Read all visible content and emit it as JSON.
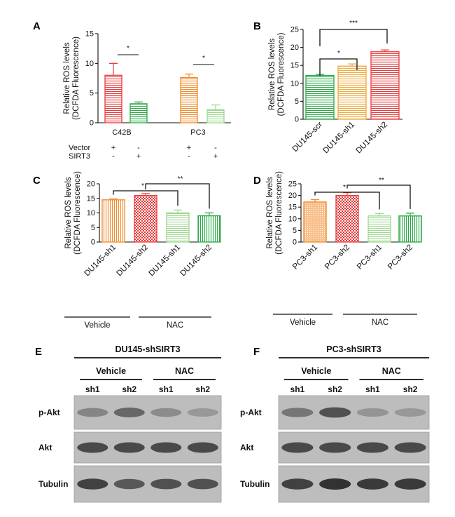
{
  "chart_data": [
    {
      "panel": "A",
      "type": "bar",
      "ylabel": "Relative ROS levels (DCFDA Fluorescence)",
      "ylim": [
        0,
        15
      ],
      "yticks": [
        "0",
        "5",
        "10",
        "15"
      ],
      "groups": [
        "C42B",
        "PC3"
      ],
      "bars": [
        {
          "group": "C42B",
          "value": 8.0,
          "error": 2.0,
          "color": "#e83a3a",
          "pattern": "hlines"
        },
        {
          "group": "C42B",
          "value": 3.2,
          "error": 0.3,
          "color": "#2aa844",
          "pattern": "hlines"
        },
        {
          "group": "PC3",
          "value": 7.6,
          "error": 0.6,
          "color": "#f28a2a",
          "pattern": "hlines"
        },
        {
          "group": "PC3",
          "value": 2.2,
          "error": 0.8,
          "color": "#9ed88e",
          "pattern": "hlines"
        }
      ],
      "significance": [
        "*",
        "*"
      ],
      "condition_rows": [
        {
          "label": "Vector",
          "marks": [
            "+",
            "-",
            "+",
            "-"
          ]
        },
        {
          "label": "SIRT3",
          "marks": [
            "-",
            "+",
            "-",
            "+"
          ]
        }
      ]
    },
    {
      "panel": "B",
      "type": "bar",
      "ylabel": "Relative ROS levels (DCFDA Fluorescence)",
      "ylim": [
        0,
        25
      ],
      "yticks": [
        "0",
        "5",
        "10",
        "15",
        "20",
        "25"
      ],
      "categories": [
        "DU145-scr",
        "DU145-sh1",
        "DU145-sh2"
      ],
      "values": [
        12.2,
        14.8,
        18.8
      ],
      "errors": [
        0.3,
        0.6,
        0.5
      ],
      "colors": [
        "#2aa844",
        "#f2a93a",
        "#e83a3a"
      ],
      "significance": [
        "*",
        "***"
      ]
    },
    {
      "panel": "C",
      "type": "bar",
      "ylabel": "Relative ROS levels (DCFDA Fluorescence)",
      "ylim": [
        0,
        20
      ],
      "yticks": [
        "0",
        "5",
        "10",
        "15",
        "20"
      ],
      "categories": [
        "DU145-sh1",
        "DU145-sh2",
        "DU145-sh1",
        "DU145-sh2"
      ],
      "values": [
        14.5,
        16.0,
        10.0,
        9.0
      ],
      "errors": [
        0.3,
        0.6,
        1.0,
        1.0
      ],
      "colors": [
        "#f28a2a",
        "#e83a3a",
        "#9ed88e",
        "#2aa844"
      ],
      "significance": [
        "*",
        "**"
      ],
      "treatment_groups": [
        "Vehicle",
        "NAC"
      ]
    },
    {
      "panel": "D",
      "type": "bar",
      "ylabel": "Relative ROS levels (DCFDA Fluorescence)",
      "ylim": [
        0,
        25
      ],
      "yticks": [
        "0",
        "5",
        "10",
        "15",
        "20",
        "25"
      ],
      "categories": [
        "PC3-sh1",
        "PC3-sh2",
        "PC3-sh1",
        "PC3-sh2"
      ],
      "values": [
        17.2,
        20.0,
        11.2,
        11.2
      ],
      "errors": [
        1.0,
        1.2,
        1.0,
        1.2
      ],
      "colors": [
        "#f28a2a",
        "#e83a3a",
        "#9ed88e",
        "#2aa844"
      ],
      "significance": [
        "*",
        "**"
      ],
      "treatment_groups": [
        "Vehicle",
        "NAC"
      ]
    }
  ],
  "blots": [
    {
      "panel": "E",
      "title": "DU145-shSIRT3",
      "treatments": [
        "Vehicle",
        "NAC"
      ],
      "lanes": [
        "sh1",
        "sh2",
        "sh1",
        "sh2"
      ],
      "rows": [
        {
          "label": "p-Akt",
          "intensity": [
            0.45,
            0.65,
            0.4,
            0.32
          ]
        },
        {
          "label": "Akt",
          "intensity": [
            0.85,
            0.85,
            0.85,
            0.85
          ]
        },
        {
          "label": "Tubulin",
          "intensity": [
            0.9,
            0.75,
            0.8,
            0.8
          ]
        }
      ]
    },
    {
      "panel": "F",
      "title": "PC3-shSIRT3",
      "treatments": [
        "Vehicle",
        "NAC"
      ],
      "lanes": [
        "sh1",
        "sh2",
        "sh1",
        "sh2"
      ],
      "rows": [
        {
          "label": "p-Akt",
          "intensity": [
            0.55,
            0.8,
            0.35,
            0.32
          ]
        },
        {
          "label": "Akt",
          "intensity": [
            0.85,
            0.85,
            0.85,
            0.85
          ]
        },
        {
          "label": "Tubulin",
          "intensity": [
            0.9,
            1.0,
            0.95,
            0.95
          ]
        }
      ]
    }
  ]
}
